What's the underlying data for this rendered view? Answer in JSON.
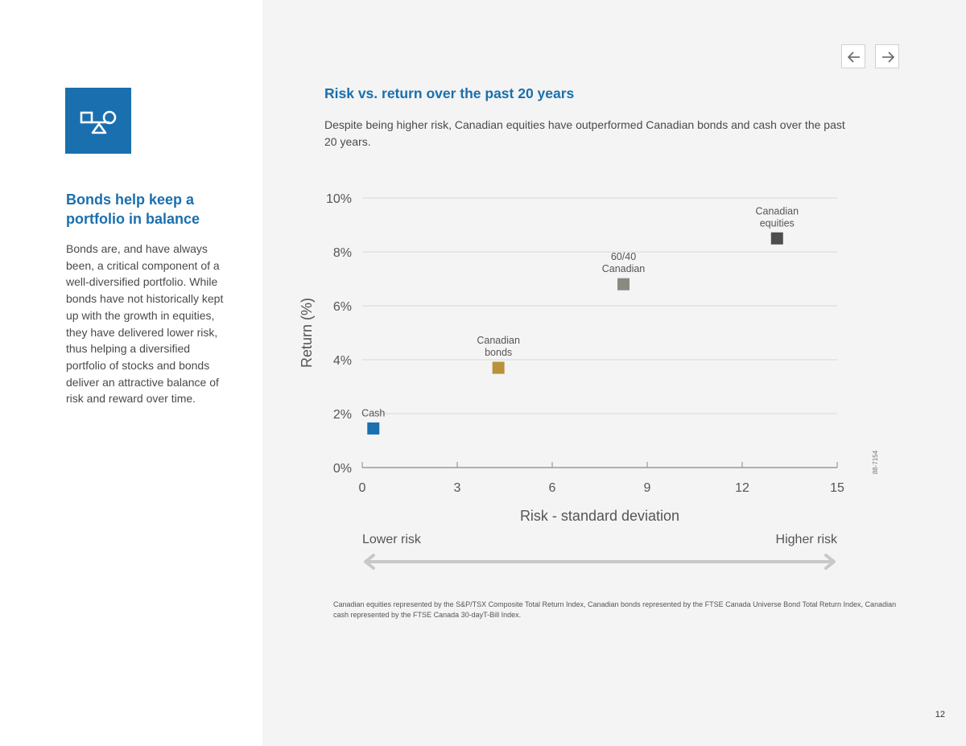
{
  "sidebar": {
    "heading": "Bonds help keep a portfolio in balance",
    "body": "Bonds are, and have always been, a critical component of a well-diversified portfolio. While bonds have not historically kept up with the growth in equities, they have delivered lower risk, thus helping a diversified portfolio of stocks and bonds deliver an attractive balance of risk and reward over time.",
    "logo_icon": "balance-shapes-icon"
  },
  "nav": {
    "prev_icon": "arrow-left-icon",
    "next_icon": "arrow-right-icon"
  },
  "footnote": "Canadian equities represented by the S&P/TSX Composite Total Return Index, Canadian bonds represented by the FTSE Canada Universe Bond Total Return Index, Canadian cash represented by the FTSE Canada 30-dayT-Bill Index.",
  "page_number": "12",
  "side_code": "88-7154",
  "colors": {
    "brand_blue": "#1a6fae",
    "cash": "#1a6fae",
    "bonds": "#b8913a",
    "balanced": "#8a8a7e",
    "equities": "#4e4e4c",
    "grid": "#d9d9d9",
    "arrow": "#c8c8c8"
  },
  "chart_data": {
    "type": "scatter",
    "title": "Risk vs. return over the past 20 years",
    "subtitle": "Despite being higher risk, Canadian equities have outperformed Canadian bonds and cash over the past 20 years.",
    "xlabel": "Risk - standard deviation",
    "ylabel": "Return (%)",
    "xlim": [
      0,
      15
    ],
    "ylim": [
      0,
      10
    ],
    "xticks": [
      0,
      3,
      6,
      9,
      12,
      15
    ],
    "yticks": [
      0,
      2,
      4,
      6,
      8,
      10
    ],
    "ytick_labels": [
      "0%",
      "2%",
      "4%",
      "6%",
      "8%",
      "10%"
    ],
    "grid": true,
    "points": [
      {
        "name": "Cash",
        "label_lines": [
          "Cash"
        ],
        "x": 0.35,
        "y": 1.45,
        "color": "#1a6fae"
      },
      {
        "name": "Canadian bonds",
        "label_lines": [
          "Canadian",
          "bonds"
        ],
        "x": 4.3,
        "y": 3.7,
        "color": "#b8913a"
      },
      {
        "name": "60/40 Canadian",
        "label_lines": [
          "60/40",
          "Canadian"
        ],
        "x": 8.25,
        "y": 6.8,
        "color": "#8a8a7e"
      },
      {
        "name": "Canadian equities",
        "label_lines": [
          "Canadian",
          "equities"
        ],
        "x": 13.1,
        "y": 8.5,
        "color": "#4e4e4c"
      }
    ],
    "risk_scale": {
      "low_label": "Lower risk",
      "high_label": "Higher risk"
    }
  }
}
